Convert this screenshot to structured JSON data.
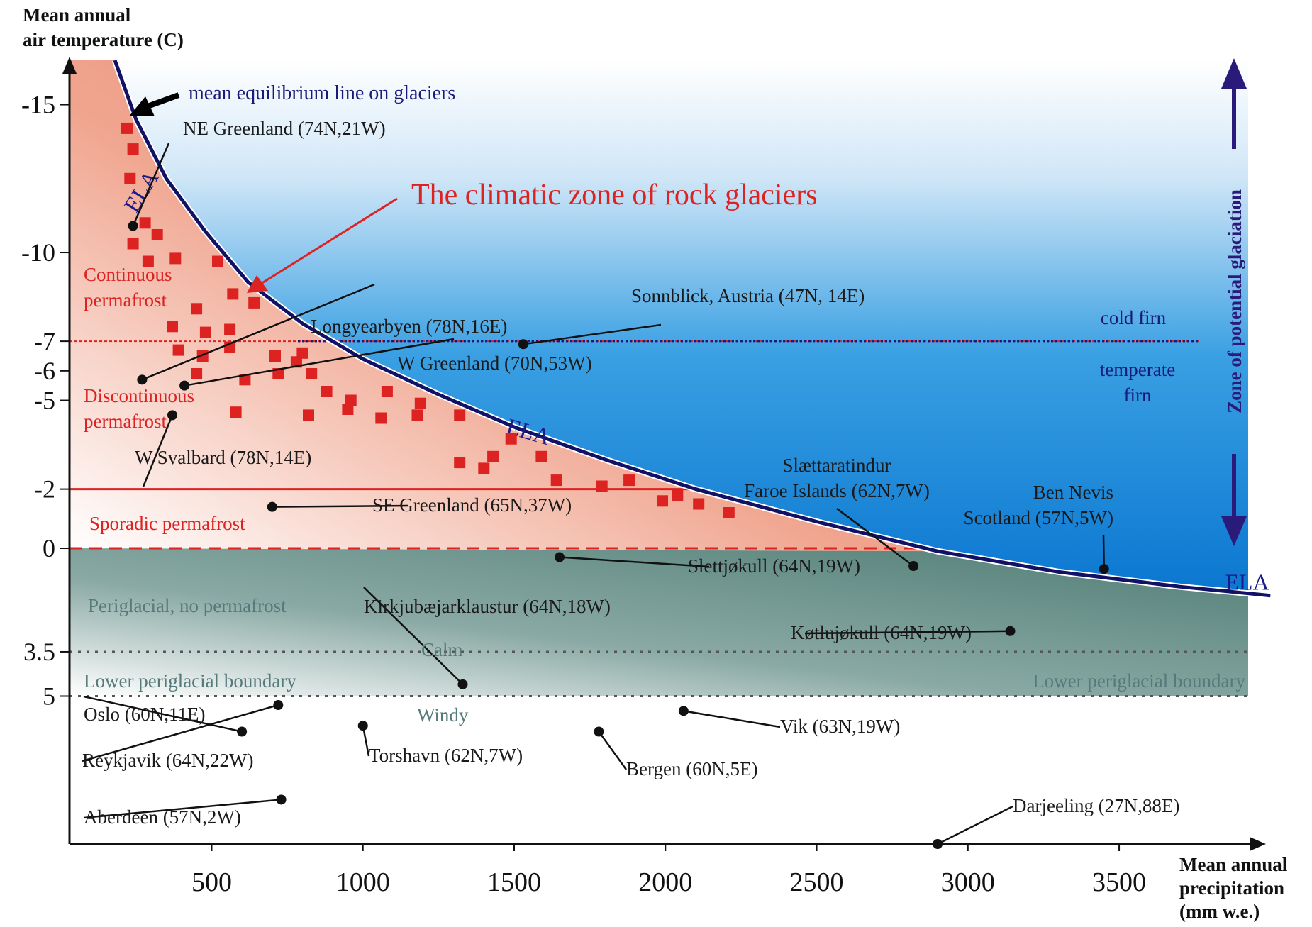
{
  "colors": {
    "permafrost_red": "#dd2222",
    "glaciation_blue": "#0a76d0",
    "ela_navy": "#111166",
    "periglacial_teal": "#4e7c74"
  },
  "chart_data": {
    "type": "scatter",
    "title": "",
    "xlabel": "Mean annual precipitation (mm w.e.)",
    "ylabel": "Mean annual air temperature (C)",
    "xlabel_lines": [
      "Mean annual",
      "precipitation",
      "(mm w.e.)"
    ],
    "ylabel_lines": [
      "Mean annual",
      "air temperature (C)"
    ],
    "xlim": [
      30,
      3950
    ],
    "ylim": [
      10,
      -16.5
    ],
    "x_ticks": [
      500,
      1000,
      1500,
      2000,
      2500,
      3000,
      3500
    ],
    "y_ticks": [
      -15,
      -10,
      -7,
      -6,
      -5,
      -2,
      0,
      3.5,
      5
    ],
    "grid": false,
    "ela_curve": [
      [
        180,
        -16.5
      ],
      [
        250,
        -14.5
      ],
      [
        350,
        -12.5
      ],
      [
        480,
        -10.7
      ],
      [
        620,
        -9.0
      ],
      [
        800,
        -7.6
      ],
      [
        1000,
        -6.4
      ],
      [
        1250,
        -5.2
      ],
      [
        1500,
        -4.1
      ],
      [
        1800,
        -3.0
      ],
      [
        2100,
        -2.0
      ],
      [
        2500,
        -0.9
      ],
      [
        2900,
        0.1
      ],
      [
        3300,
        0.8
      ],
      [
        3700,
        1.3
      ],
      [
        4000,
        1.6
      ]
    ],
    "ela_labels": [
      "ELA",
      "ELA",
      "ELA"
    ],
    "rock_glacier_points": [
      [
        220,
        -14.2
      ],
      [
        240,
        -13.5
      ],
      [
        230,
        -12.5
      ],
      [
        280,
        -11.0
      ],
      [
        320,
        -10.6
      ],
      [
        240,
        -10.3
      ],
      [
        290,
        -9.7
      ],
      [
        380,
        -9.8
      ],
      [
        520,
        -9.7
      ],
      [
        570,
        -8.6
      ],
      [
        450,
        -8.1
      ],
      [
        640,
        -8.3
      ],
      [
        370,
        -7.5
      ],
      [
        480,
        -7.3
      ],
      [
        560,
        -7.4
      ],
      [
        390,
        -6.7
      ],
      [
        470,
        -6.5
      ],
      [
        560,
        -6.8
      ],
      [
        800,
        -6.6
      ],
      [
        710,
        -6.5
      ],
      [
        450,
        -5.9
      ],
      [
        610,
        -5.7
      ],
      [
        720,
        -5.9
      ],
      [
        830,
        -5.9
      ],
      [
        880,
        -5.3
      ],
      [
        780,
        -6.3
      ],
      [
        960,
        -5.0
      ],
      [
        1080,
        -5.3
      ],
      [
        1190,
        -4.9
      ],
      [
        950,
        -4.7
      ],
      [
        1060,
        -4.4
      ],
      [
        1180,
        -4.5
      ],
      [
        1320,
        -4.5
      ],
      [
        580,
        -4.6
      ],
      [
        820,
        -4.5
      ],
      [
        1490,
        -3.7
      ],
      [
        1430,
        -3.1
      ],
      [
        1590,
        -3.1
      ],
      [
        1320,
        -2.9
      ],
      [
        1400,
        -2.7
      ],
      [
        1640,
        -2.3
      ],
      [
        1790,
        -2.1
      ],
      [
        1880,
        -2.3
      ],
      [
        1990,
        -1.6
      ],
      [
        2040,
        -1.8
      ],
      [
        2110,
        -1.5
      ],
      [
        2210,
        -1.2
      ]
    ],
    "sites": [
      {
        "name": "NE Greenland (74N,21W)",
        "x": 240,
        "y": -10.9
      },
      {
        "name": "Longyearbyen (78N,16E)",
        "x": 270,
        "y": -5.7
      },
      {
        "name": "W Greenland (70N,53W)",
        "x": 410,
        "y": -5.5
      },
      {
        "name": "W Svalbard (78N,14E)",
        "x": 370,
        "y": -4.5
      },
      {
        "name": "SE Greenland (65N,37W)",
        "x": 700,
        "y": -1.4
      },
      {
        "name": "Sonnblick, Austria (47N, 14E)",
        "x": 1530,
        "y": -6.9
      },
      {
        "name": "Slettjøkull (64N,19W)",
        "x": 1650,
        "y": 0.3
      },
      {
        "name": "Kirkjubæjarklaustur (64N,18W)",
        "x": 1330,
        "y": 4.6
      },
      {
        "name": "Slættaratindur Faroe Islands (62N,7W)",
        "x": 2820,
        "y": 0.6
      },
      {
        "name": "Ben Nevis Scotland (57N,5W)",
        "x": 3450,
        "y": 0.7
      },
      {
        "name": "Køtlujøkull (64N,19W)",
        "x": 3140,
        "y": 2.8
      },
      {
        "name": "Oslo (60N,11E)",
        "x": 600,
        "y": 6.2
      },
      {
        "name": "Reykjavik (64N,22W)",
        "x": 720,
        "y": 5.3
      },
      {
        "name": "Aberdeen (57N,2W)",
        "x": 730,
        "y": 8.5
      },
      {
        "name": "Torshavn (62N,7W)",
        "x": 1000,
        "y": 6.0
      },
      {
        "name": "Bergen (60N,5E)",
        "x": 1780,
        "y": 6.2
      },
      {
        "name": "Vik (63N,19W)",
        "x": 2060,
        "y": 5.5
      },
      {
        "name": "Darjeeling (27N,88E)",
        "x": 2900,
        "y": 10.0
      }
    ],
    "zone_lines": [
      {
        "label": "-7",
        "y": -7
      },
      {
        "label": "-2",
        "y": -2
      },
      {
        "label": "0",
        "y": 0
      },
      {
        "label": "3.5",
        "y": 3.5
      },
      {
        "label": "5",
        "y": 5
      }
    ],
    "annotations": {
      "rock_glacier_zone": "The climatic zone of rock glaciers",
      "mean_ela": "mean equilibrium line on glaciers",
      "continuous": [
        "Continuous",
        "permafrost"
      ],
      "discontinuous": [
        "Discontinuous",
        "permafrost"
      ],
      "sporadic": "Sporadic permafrost",
      "periglacial": "Periglacial, no permafrost",
      "calm": "Calm",
      "windy": "Windy",
      "lower_boundary": "Lower periglacial boundary",
      "cold_firn": "cold firn",
      "temperate_firn": [
        "temperate",
        "firn"
      ],
      "glaciation_zone": "Zone of potential glaciation"
    }
  }
}
